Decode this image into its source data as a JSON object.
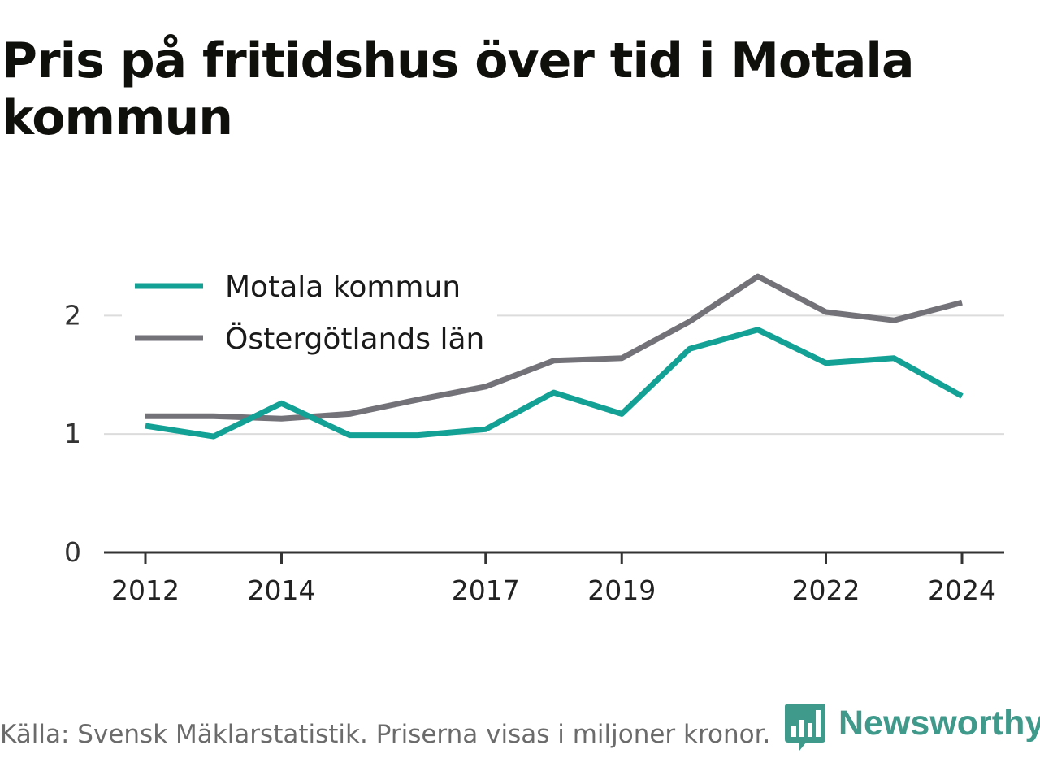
{
  "title": "Pris på fritidshus över tid i Motala kommun",
  "footer": "Källa: Svensk Mäklarstatistik. Priserna visas i miljoner kronor.",
  "brand": {
    "name": "Newsworthy",
    "icon": "chart-bubble-icon",
    "color": "#3f9a8c"
  },
  "chart_data": {
    "type": "line",
    "x": [
      2012,
      2013,
      2014,
      2015,
      2016,
      2017,
      2018,
      2019,
      2020,
      2021,
      2022,
      2023,
      2024
    ],
    "xticks": [
      "2012",
      "2014",
      "2017",
      "2019",
      "2022",
      "2024"
    ],
    "yticks": [
      "0",
      "1",
      "2"
    ],
    "ylim": [
      0,
      2.4
    ],
    "grid": true,
    "legend_position": "top-left",
    "series": [
      {
        "name": "Motala kommun",
        "color": "#13a195",
        "values": [
          1.07,
          0.98,
          1.26,
          0.99,
          0.99,
          1.04,
          1.35,
          1.17,
          1.72,
          1.88,
          1.6,
          1.64,
          1.32
        ]
      },
      {
        "name": "Östergötlands län",
        "color": "#737279",
        "values": [
          1.15,
          1.15,
          1.13,
          1.17,
          1.29,
          1.4,
          1.62,
          1.64,
          1.95,
          2.33,
          2.03,
          1.96,
          2.11
        ]
      }
    ]
  }
}
